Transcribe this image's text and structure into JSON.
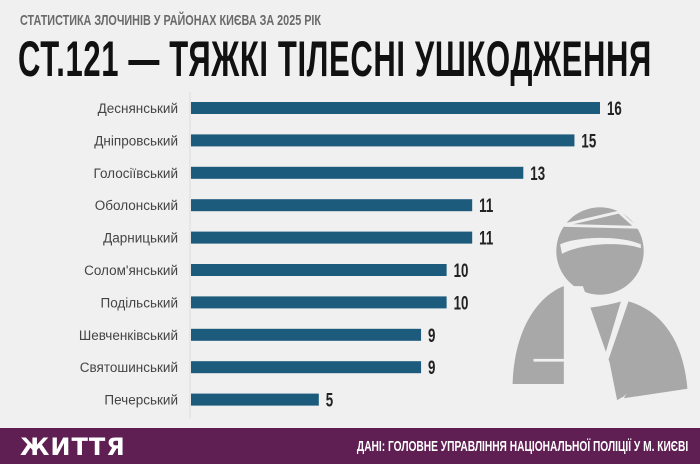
{
  "header": {
    "subtitle": "СТАТИСТИКА ЗЛОЧИНІВ У РАЙОНАХ КИЄВА ЗА 2025 РІК",
    "title": "СТ.121 — ТЯЖКІ ТІЛЕСНІ УШКОДЖЕННЯ"
  },
  "chart_data": {
    "type": "bar",
    "orientation": "horizontal",
    "title": "СТ.121 — ТЯЖКІ ТІЛЕСНІ УШКОДЖЕННЯ",
    "categories": [
      "Деснянський",
      "Дніпровський",
      "Голосіївський",
      "Оболонський",
      "Дарницький",
      "Солом'янський",
      "Подільський",
      "Шевченківський",
      "Святошинський",
      "Печерський"
    ],
    "values": [
      16,
      15,
      13,
      11,
      11,
      10,
      10,
      9,
      9,
      5
    ],
    "xlim": [
      0,
      16
    ],
    "grid": false,
    "bar_color": "#1d5b7c"
  },
  "footer": {
    "logo": "ЖИТТЯ",
    "source": "ДАНІ: ГОЛОВНЕ УПРАВЛІННЯ НАЦІОНАЛЬНОЇ ПОЛІЦІЇ У М. КИЄВІ",
    "background": "#5f1f53"
  },
  "illustration": {
    "icon": "injured-person-bandage-sling-icon",
    "color": "#a8a8a8"
  }
}
